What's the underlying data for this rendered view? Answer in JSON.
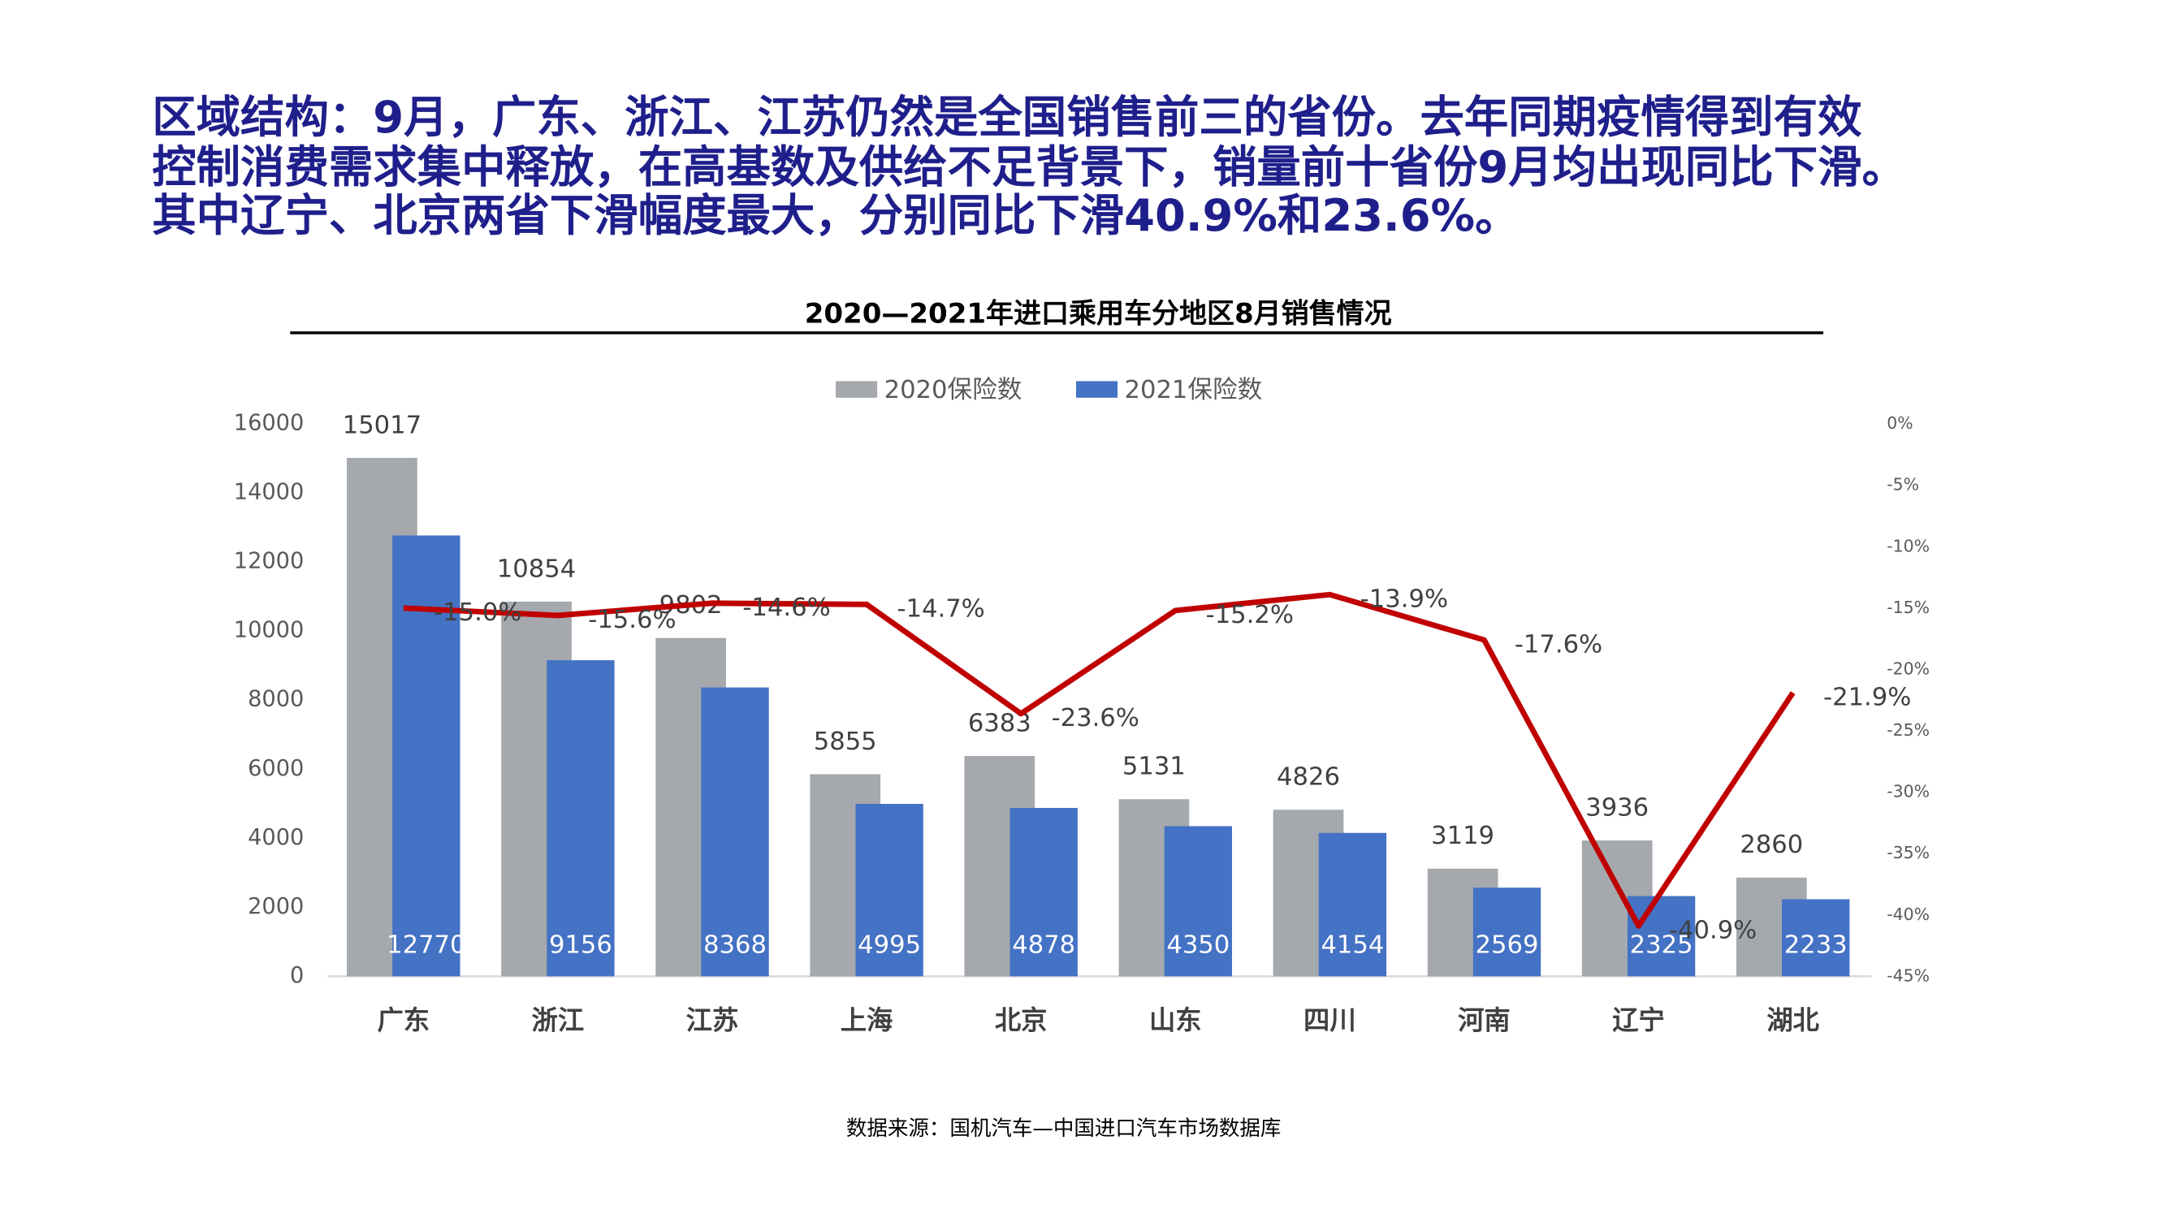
{
  "heading": {
    "lines": [
      "区域结构：9月，广东、浙江、江苏仍然是全国销售前三的省份。去年同期疫情得到有效",
      "控制消费需求集中释放，在高基数及供给不足背景下，销量前十省份9月均出现同比下滑。",
      "其中辽宁、北京两省下滑幅度最大，分别同比下滑40.9%和23.6%。"
    ]
  },
  "chart_data": {
    "type": "bar",
    "title": "2020—2021年进口乘用车分地区8月销售情况",
    "categories": [
      "广东",
      "浙江",
      "江苏",
      "上海",
      "北京",
      "山东",
      "四川",
      "河南",
      "辽宁",
      "湖北"
    ],
    "series": [
      {
        "name": "2020保险数",
        "color": "#a5a9ae",
        "values": [
          15017,
          10854,
          9802,
          5855,
          6383,
          5131,
          4826,
          3119,
          3936,
          2860
        ]
      },
      {
        "name": "2021保险数",
        "color": "#4472c4",
        "values": [
          12770,
          9156,
          8368,
          4995,
          4878,
          4350,
          4154,
          2569,
          2325,
          2233
        ]
      },
      {
        "type": "line",
        "axis": "y2",
        "color": "#c00000",
        "values": [
          -15.0,
          -15.6,
          -14.6,
          -14.7,
          -23.6,
          -15.2,
          -13.9,
          -17.6,
          -40.9,
          -21.9
        ],
        "value_labels": [
          "-15.0%",
          "-15.6%",
          "-14.6%",
          "-14.7%",
          "-23.6%",
          "-15.2%",
          "-13.9%",
          "-17.6%",
          "-40.9%",
          "-21.9%"
        ]
      }
    ],
    "ylim": [
      0,
      16000
    ],
    "yticks": [
      0,
      2000,
      4000,
      6000,
      8000,
      10000,
      12000,
      14000,
      16000
    ],
    "y2lim": [
      -45,
      0
    ],
    "y2ticks": [
      {
        "value": 0,
        "label": "0%"
      },
      {
        "value": -5,
        "label": "-5%"
      },
      {
        "value": -10,
        "label": "-10%"
      },
      {
        "value": -15,
        "label": "-15%"
      },
      {
        "value": -20,
        "label": "-20%"
      },
      {
        "value": -25,
        "label": "-25%"
      },
      {
        "value": -30,
        "label": "-30%"
      },
      {
        "value": -35,
        "label": "-35%"
      },
      {
        "value": -40,
        "label": "-40%"
      },
      {
        "value": -45,
        "label": "-45%"
      }
    ],
    "grid": false,
    "legend": "top",
    "source": "数据来源：国机汽车—中国进口汽车市场数据库"
  }
}
